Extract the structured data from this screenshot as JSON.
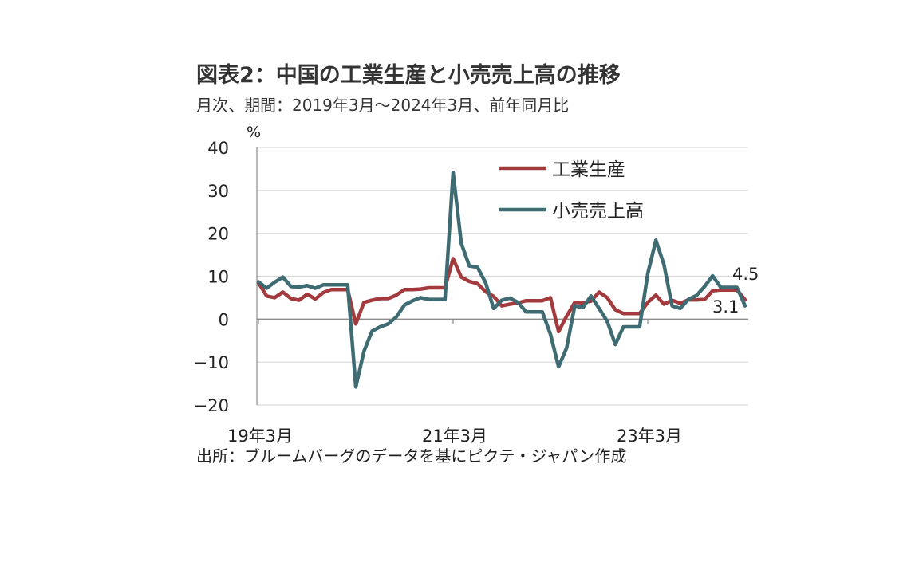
{
  "header": {
    "title": "図表2：中国の工業生産と小売売上高の推移",
    "subtitle": "月次、期間：2019年3月～2024年3月、前年同月比"
  },
  "footer": {
    "source": "出所：ブルームバーグのデータを基にピクテ・ジャパン作成"
  },
  "chart_data": {
    "type": "line",
    "ylabel": "%",
    "ylim": [
      -20,
      40
    ],
    "yticks": [
      40,
      30,
      20,
      10,
      0,
      -10,
      -20
    ],
    "x_tick_labels": [
      {
        "label": "19年3月",
        "index": 0
      },
      {
        "label": "21年3月",
        "index": 24
      },
      {
        "label": "23年3月",
        "index": 48
      }
    ],
    "grid": true,
    "legend_position": "top-right",
    "x": [
      "2019-03",
      "2019-04",
      "2019-05",
      "2019-06",
      "2019-07",
      "2019-08",
      "2019-09",
      "2019-10",
      "2019-11",
      "2019-12",
      "2020-01",
      "2020-02",
      "2020-03",
      "2020-04",
      "2020-05",
      "2020-06",
      "2020-07",
      "2020-08",
      "2020-09",
      "2020-10",
      "2020-11",
      "2020-12",
      "2021-01",
      "2021-02",
      "2021-03",
      "2021-04",
      "2021-05",
      "2021-06",
      "2021-07",
      "2021-08",
      "2021-09",
      "2021-10",
      "2021-11",
      "2021-12",
      "2022-01",
      "2022-02",
      "2022-03",
      "2022-04",
      "2022-05",
      "2022-06",
      "2022-07",
      "2022-08",
      "2022-09",
      "2022-10",
      "2022-11",
      "2022-12",
      "2023-01",
      "2023-02",
      "2023-03",
      "2023-04",
      "2023-05",
      "2023-06",
      "2023-07",
      "2023-08",
      "2023-09",
      "2023-10",
      "2023-11",
      "2023-12",
      "2024-01",
      "2024-02",
      "2024-03"
    ],
    "series": [
      {
        "name": "工業生産",
        "color": "#a33a3e",
        "values": [
          8.5,
          5.4,
          5.0,
          6.3,
          4.8,
          4.4,
          5.8,
          4.7,
          6.2,
          6.9,
          6.9,
          6.9,
          -1.1,
          3.9,
          4.4,
          4.8,
          4.8,
          5.6,
          6.9,
          6.9,
          7.0,
          7.3,
          7.3,
          7.3,
          14.1,
          9.8,
          8.8,
          8.3,
          6.4,
          5.3,
          3.1,
          3.5,
          3.8,
          4.3,
          4.3,
          4.3,
          5.0,
          -2.9,
          0.7,
          3.9,
          3.8,
          4.2,
          6.3,
          5.0,
          2.2,
          1.3,
          1.3,
          1.3,
          3.9,
          5.6,
          3.5,
          4.4,
          3.7,
          4.5,
          4.5,
          4.6,
          6.6,
          6.8,
          6.8,
          6.8,
          4.5
        ]
      },
      {
        "name": "小売売上高",
        "color": "#3f6b73",
        "values": [
          8.7,
          7.2,
          8.6,
          9.8,
          7.6,
          7.5,
          7.8,
          7.2,
          8.0,
          8.0,
          8.0,
          8.0,
          -15.8,
          -7.5,
          -2.8,
          -1.8,
          -1.1,
          0.5,
          3.3,
          4.3,
          5.0,
          4.6,
          4.6,
          4.6,
          34.2,
          17.7,
          12.4,
          12.1,
          8.5,
          2.5,
          4.4,
          4.9,
          3.9,
          1.7,
          1.7,
          1.7,
          -3.5,
          -11.1,
          -6.7,
          3.1,
          2.7,
          5.4,
          2.5,
          -0.5,
          -5.9,
          -1.8,
          -1.8,
          -1.8,
          10.6,
          18.4,
          12.7,
          3.1,
          2.5,
          4.6,
          5.5,
          7.6,
          10.1,
          7.4,
          7.4,
          7.4,
          3.1
        ]
      }
    ],
    "annotations": [
      {
        "text": "4.5",
        "series": "工業生産"
      },
      {
        "text": "3.1",
        "series": "小売売上高"
      }
    ]
  }
}
